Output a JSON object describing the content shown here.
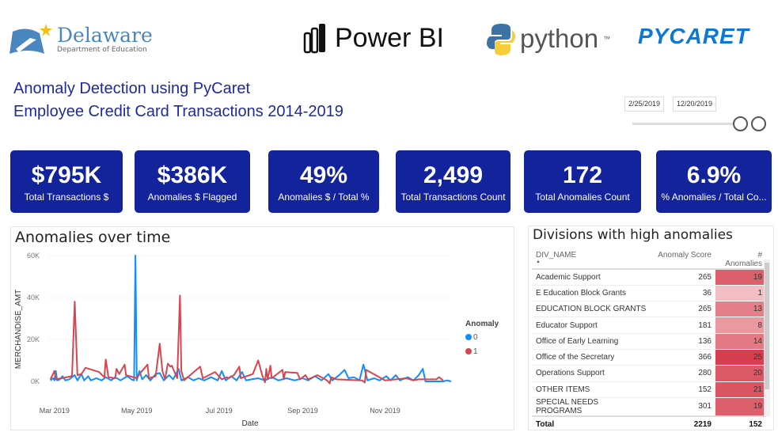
{
  "logos": {
    "delaware_name": "Delaware",
    "delaware_sub": "Department of Education",
    "powerbi": "Power BI",
    "python": "python",
    "python_tm": "™",
    "pycaret": "PYCARET"
  },
  "title": {
    "line1": "Anomaly Detection using PyCaret",
    "line2": "Employee Credit Card Transactions 2014-2019"
  },
  "date_slicer": {
    "start": "2/25/2019",
    "end": "12/20/2019",
    "range_fraction": [
      0.0,
      1.0
    ]
  },
  "cards": [
    {
      "value": "$795K",
      "label": "Total Transactions $"
    },
    {
      "value": "$386K",
      "label": "Anomalies $ Flagged"
    },
    {
      "value": "49%",
      "label": "Anomalies $ / Total %"
    },
    {
      "value": "2,499",
      "label": "Total Transactions Count"
    },
    {
      "value": "172",
      "label": "Total Anomalies Count"
    },
    {
      "value": "6.9%",
      "label": "% Anomalies / Total Co..."
    }
  ],
  "colors": {
    "card_bg": "#12239c",
    "title": "#1f2a9c",
    "series0": "#118dff",
    "series1": "#d64550"
  },
  "chart_data": {
    "type": "line",
    "title": "Anomalies over time",
    "xlabel": "Date",
    "ylabel": "MERCHANDISE_AMT",
    "xlim": [
      "2019-02-25",
      "2019-12-20"
    ],
    "ylim": [
      -10000,
      65000
    ],
    "yticks": [
      {
        "v": 0,
        "label": "0K"
      },
      {
        "v": 20000,
        "label": "20K"
      },
      {
        "v": 40000,
        "label": "40K"
      },
      {
        "v": 60000,
        "label": "60K"
      }
    ],
    "xticks": [
      {
        "d": "2019-03-01",
        "label": "Mar 2019"
      },
      {
        "d": "2019-05-01",
        "label": "May 2019"
      },
      {
        "d": "2019-07-01",
        "label": "Jul 2019"
      },
      {
        "d": "2019-09-01",
        "label": "Sep 2019"
      },
      {
        "d": "2019-11-01",
        "label": "Nov 2019"
      }
    ],
    "grid": true,
    "legend": {
      "title": "Anomaly",
      "placement": "right"
    },
    "series": [
      {
        "name": "0",
        "color": "#118dff",
        "points": [
          [
            "2019-02-26",
            500
          ],
          [
            "2019-02-28",
            1500
          ],
          [
            "2019-03-01",
            500
          ],
          [
            "2019-03-02",
            5000
          ],
          [
            "2019-03-03",
            500
          ],
          [
            "2019-03-05",
            1000
          ],
          [
            "2019-03-07",
            2500
          ],
          [
            "2019-03-09",
            500
          ],
          [
            "2019-03-12",
            1000
          ],
          [
            "2019-03-14",
            2000
          ],
          [
            "2019-03-16",
            3000
          ],
          [
            "2019-03-18",
            500
          ],
          [
            "2019-03-21",
            3500
          ],
          [
            "2019-03-23",
            500
          ],
          [
            "2019-03-26",
            2500
          ],
          [
            "2019-03-28",
            500
          ],
          [
            "2019-04-01",
            1500
          ],
          [
            "2019-04-05",
            500
          ],
          [
            "2019-04-08",
            2000
          ],
          [
            "2019-04-12",
            500
          ],
          [
            "2019-04-15",
            2000
          ],
          [
            "2019-04-19",
            500
          ],
          [
            "2019-04-24",
            2500
          ],
          [
            "2019-04-27",
            1000
          ],
          [
            "2019-04-29",
            500
          ],
          [
            "2019-04-30",
            60000
          ],
          [
            "2019-05-01",
            500
          ],
          [
            "2019-05-03",
            5000
          ],
          [
            "2019-05-05",
            1000
          ],
          [
            "2019-05-08",
            3000
          ],
          [
            "2019-05-11",
            500
          ],
          [
            "2019-05-15",
            3500
          ],
          [
            "2019-05-18",
            4000
          ],
          [
            "2019-05-21",
            500
          ],
          [
            "2019-05-25",
            3000
          ],
          [
            "2019-05-28",
            1000
          ],
          [
            "2019-06-01",
            6000
          ],
          [
            "2019-06-03",
            500
          ],
          [
            "2019-06-08",
            2000
          ],
          [
            "2019-06-12",
            500
          ],
          [
            "2019-06-16",
            1500
          ],
          [
            "2019-06-20",
            500
          ],
          [
            "2019-06-25",
            2000
          ],
          [
            "2019-06-30",
            500
          ],
          [
            "2019-07-03",
            5000
          ],
          [
            "2019-07-06",
            500
          ],
          [
            "2019-07-10",
            2500
          ],
          [
            "2019-07-14",
            500
          ],
          [
            "2019-07-18",
            4500
          ],
          [
            "2019-07-21",
            500
          ],
          [
            "2019-07-25",
            1000
          ],
          [
            "2019-07-30",
            1500
          ],
          [
            "2019-08-04",
            500
          ],
          [
            "2019-08-09",
            2000
          ],
          [
            "2019-08-14",
            500
          ],
          [
            "2019-08-20",
            1500
          ],
          [
            "2019-08-26",
            500
          ],
          [
            "2019-09-01",
            1500
          ],
          [
            "2019-09-05",
            500
          ],
          [
            "2019-09-10",
            2500
          ],
          [
            "2019-09-15",
            500
          ],
          [
            "2019-09-20",
            3500
          ],
          [
            "2019-09-23",
            500
          ],
          [
            "2019-09-28",
            3000
          ],
          [
            "2019-10-02",
            5500
          ],
          [
            "2019-10-05",
            1500
          ],
          [
            "2019-10-09",
            2000
          ],
          [
            "2019-10-13",
            500
          ],
          [
            "2019-10-16",
            8000
          ],
          [
            "2019-10-19",
            500
          ],
          [
            "2019-10-24",
            1500
          ],
          [
            "2019-10-28",
            500
          ],
          [
            "2019-11-02",
            2500
          ],
          [
            "2019-11-05",
            500
          ],
          [
            "2019-11-09",
            3000
          ],
          [
            "2019-11-12",
            500
          ],
          [
            "2019-11-18",
            2000
          ],
          [
            "2019-11-22",
            500
          ],
          [
            "2019-11-26",
            3000
          ],
          [
            "2019-11-29",
            6000
          ],
          [
            "2019-12-01",
            0
          ],
          [
            "2019-12-08",
            0
          ],
          [
            "2019-12-14",
            0
          ],
          [
            "2019-12-17",
            500
          ],
          [
            "2019-12-20",
            0
          ]
        ]
      },
      {
        "name": "1",
        "color": "#d64550",
        "points": [
          [
            "2019-02-26",
            1000
          ],
          [
            "2019-03-01",
            5000
          ],
          [
            "2019-03-02",
            1000
          ],
          [
            "2019-03-14",
            2500
          ],
          [
            "2019-03-16",
            38000
          ],
          [
            "2019-03-18",
            3000
          ],
          [
            "2019-03-21",
            3500
          ],
          [
            "2019-03-24",
            6500
          ],
          [
            "2019-04-03",
            4500
          ],
          [
            "2019-04-07",
            2000
          ],
          [
            "2019-04-08",
            10500
          ],
          [
            "2019-04-10",
            2000
          ],
          [
            "2019-04-15",
            1500
          ],
          [
            "2019-04-16",
            6000
          ],
          [
            "2019-04-18",
            3500
          ],
          [
            "2019-04-22",
            8000
          ],
          [
            "2019-04-23",
            3000
          ],
          [
            "2019-05-01",
            1500
          ],
          [
            "2019-05-03",
            3500
          ],
          [
            "2019-05-09",
            8000
          ],
          [
            "2019-05-10",
            1500
          ],
          [
            "2019-05-15",
            2500
          ],
          [
            "2019-05-18",
            18000
          ],
          [
            "2019-05-20",
            5000
          ],
          [
            "2019-05-22",
            1000
          ],
          [
            "2019-05-24",
            8500
          ],
          [
            "2019-05-26",
            7000
          ],
          [
            "2019-05-27",
            7500
          ],
          [
            "2019-05-31",
            1500
          ],
          [
            "2019-06-02",
            41000
          ],
          [
            "2019-06-03",
            5000
          ],
          [
            "2019-06-05",
            500
          ],
          [
            "2019-06-17",
            7000
          ],
          [
            "2019-06-19",
            1500
          ],
          [
            "2019-06-28",
            4500
          ],
          [
            "2019-07-03",
            1000
          ],
          [
            "2019-07-07",
            2000
          ],
          [
            "2019-07-08",
            1500
          ],
          [
            "2019-07-12",
            3000
          ],
          [
            "2019-07-16",
            7000
          ],
          [
            "2019-07-17",
            1500
          ],
          [
            "2019-07-26",
            3500
          ],
          [
            "2019-07-30",
            10000
          ],
          [
            "2019-08-02",
            3000
          ],
          [
            "2019-08-04",
            -500
          ],
          [
            "2019-08-05",
            6000
          ],
          [
            "2019-08-06",
            1000
          ],
          [
            "2019-08-08",
            7500
          ],
          [
            "2019-08-09",
            1500
          ],
          [
            "2019-08-17",
            5500
          ],
          [
            "2019-08-18",
            1000
          ],
          [
            "2019-08-19",
            4500
          ],
          [
            "2019-08-28",
            4000
          ],
          [
            "2019-08-30",
            1000
          ],
          [
            "2019-09-03",
            3000
          ],
          [
            "2019-09-05",
            1000
          ],
          [
            "2019-09-12",
            3000
          ],
          [
            "2019-09-19",
            500
          ],
          [
            "2019-09-21",
            -1000
          ],
          [
            "2019-09-22",
            2000
          ],
          [
            "2019-09-26",
            1000
          ],
          [
            "2019-10-15",
            500
          ],
          [
            "2019-10-17",
            -500
          ],
          [
            "2019-10-18",
            5500
          ],
          [
            "2019-11-01",
            500
          ],
          [
            "2019-11-17",
            1500
          ],
          [
            "2019-11-22",
            500
          ],
          [
            "2019-11-26",
            1000
          ],
          [
            "2019-12-09",
            1000
          ],
          [
            "2019-12-11",
            2000
          ],
          [
            "2019-12-14",
            500
          ]
        ]
      }
    ]
  },
  "table": {
    "title": "Divisions with high anomalies",
    "columns": [
      "DIV_NAME",
      "Anomaly Score",
      "# Anomalies"
    ],
    "sort_indicator": "▲",
    "rows": [
      {
        "name": "Academic Support",
        "score": "265",
        "count": "19",
        "n": 19
      },
      {
        "name": "E Education Block Grants",
        "score": "36",
        "count": "1",
        "n": 1
      },
      {
        "name": "EDUCATION BLOCK GRANTS",
        "score": "265",
        "count": "13",
        "n": 13
      },
      {
        "name": "Educator Support",
        "score": "181",
        "count": "8",
        "n": 8
      },
      {
        "name": "Office of Early Learning",
        "score": "136",
        "count": "14",
        "n": 14
      },
      {
        "name": "Office of the Secretary",
        "score": "366",
        "count": "25",
        "n": 25
      },
      {
        "name": "Operations Support",
        "score": "280",
        "count": "20",
        "n": 20
      },
      {
        "name": "OTHER ITEMS",
        "score": "152",
        "count": "21",
        "n": 21
      },
      {
        "name": "SPECIAL NEEDS PROGRAMS",
        "score": "301",
        "count": "19",
        "n": 19
      }
    ],
    "total": {
      "label": "Total",
      "score": "2219",
      "count": "152"
    }
  }
}
